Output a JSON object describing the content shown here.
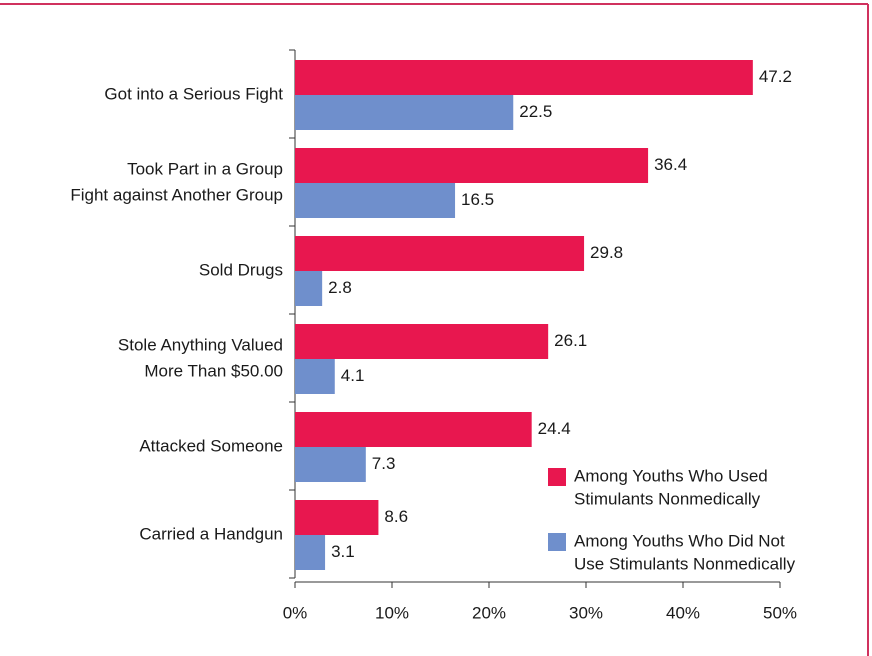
{
  "chart_data": {
    "type": "bar",
    "orientation": "horizontal",
    "categories": [
      [
        "Got into a Serious Fight"
      ],
      [
        "Took Part in a Group",
        "Fight against Another Group"
      ],
      [
        "Sold Drugs"
      ],
      [
        "Stole Anything Valued",
        "More Than $50.00"
      ],
      [
        "Attacked Someone"
      ],
      [
        "Carried a Handgun"
      ]
    ],
    "series": [
      {
        "name": [
          "Among Youths Who Used",
          "Stimulants Nonmedically"
        ],
        "color": "#e8174f",
        "values": [
          47.2,
          36.4,
          29.8,
          26.1,
          24.4,
          8.6
        ]
      },
      {
        "name": [
          "Among Youths Who Did Not",
          "Use Stimulants Nonmedically"
        ],
        "color": "#6f8fcc",
        "values": [
          22.5,
          16.5,
          2.8,
          4.1,
          7.3,
          3.1
        ]
      }
    ],
    "xlim": [
      0,
      50
    ],
    "xticks": [
      {
        "value": 0,
        "label": "0%"
      },
      {
        "value": 10,
        "label": "10%"
      },
      {
        "value": 20,
        "label": "20%"
      },
      {
        "value": 30,
        "label": "30%"
      },
      {
        "value": 40,
        "label": "40%"
      },
      {
        "value": 50,
        "label": "50%"
      }
    ],
    "legend": "lower right"
  }
}
